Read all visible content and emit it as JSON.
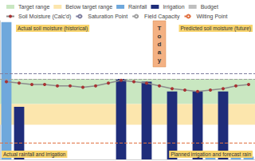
{
  "chart_data": {
    "type": "bar",
    "categories": [
      null,
      null,
      null,
      null,
      null,
      null,
      null,
      null,
      null,
      null,
      null,
      null,
      null,
      null,
      null,
      null,
      null,
      null,
      null,
      null
    ],
    "ylim": [
      0,
      100
    ],
    "tick_labels": false,
    "grid": false,
    "legend": "top",
    "series": [
      {
        "name": "Rainfall",
        "type": "bar",
        "color": "#6fa8dc",
        "values": [
          99,
          null,
          null,
          null,
          null,
          null,
          null,
          null,
          null,
          null,
          null,
          null,
          null,
          null,
          null,
          null,
          4,
          null,
          3,
          2
        ]
      },
      {
        "name": "Irrigation",
        "type": "bar",
        "color": "#1f2d7a",
        "values": [
          null,
          38,
          null,
          null,
          null,
          null,
          null,
          null,
          null,
          58,
          null,
          56,
          null,
          49,
          null,
          49,
          null,
          49,
          null,
          null
        ]
      },
      {
        "name": "Budget",
        "type": "bar",
        "color": "#bfbfbf",
        "values": [
          null,
          null,
          null,
          null,
          null,
          null,
          null,
          null,
          null,
          null,
          null,
          null,
          null,
          null,
          null,
          null,
          null,
          null,
          null,
          null
        ]
      },
      {
        "name": "Soil Moisture (Calc'd)",
        "type": "line",
        "color": "#8c8c8c",
        "marker": "circle",
        "values": [
          56,
          55,
          54,
          54,
          53,
          53,
          52,
          53,
          55,
          57,
          56,
          55,
          53,
          51,
          50,
          49,
          50,
          51,
          53,
          54
        ]
      }
    ],
    "bands": [
      {
        "name": "Target range",
        "color": "#c9e7c1",
        "range": [
          40,
          58
        ]
      },
      {
        "name": "Below target range",
        "color": "#fce6ad",
        "range": [
          25,
          40
        ]
      }
    ],
    "reference_lines": [
      {
        "name": "Saturation Point",
        "value": 62,
        "color": "#7f7f9f",
        "line_style": "dashed"
      },
      {
        "name": "Field Capacity",
        "value": 58,
        "color": "#a0a0a0",
        "line_style": "dashed"
      },
      {
        "name": "Wilting Point",
        "value": 12,
        "color": "#e07040",
        "line_style": "dashed"
      }
    ],
    "today": {
      "label": "Today",
      "index": 12
    },
    "annotations": [
      "Actual soil moisture (historical)",
      "Predicted soil moisture (future)",
      "Actual rainfall and irrigation",
      "Planned irrigation and forecast rain"
    ]
  }
}
